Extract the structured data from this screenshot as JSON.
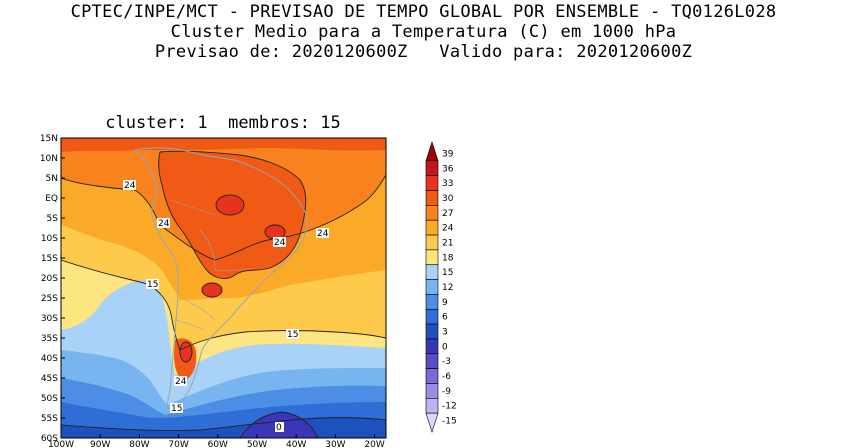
{
  "header": {
    "line1": "CPTEC/INPE/MCT - PREVISAO DE TEMPO GLOBAL POR ENSEMBLE - TQ0126L028",
    "line2": "Cluster Medio para a Temperatura (C) em 1000 hPa",
    "line3": "Previsao de: 2020120600Z   Valido para: 2020120600Z"
  },
  "subtitle": "cluster: 1  membros: 15",
  "lat_ticks": [
    "15N",
    "10N",
    "5N",
    "EQ",
    "5S",
    "10S",
    "15S",
    "20S",
    "25S",
    "30S",
    "35S",
    "40S",
    "45S",
    "50S",
    "55S",
    "60S"
  ],
  "lon_ticks": [
    "100W",
    "90W",
    "80W",
    "70W",
    "60W",
    "50W",
    "40W",
    "30W",
    "20W"
  ],
  "contour_labels": {
    "c24_a": "24",
    "c24_b": "24",
    "c24_c": "24",
    "c24_d": "24",
    "c24_e": "24",
    "c15_a": "15",
    "c15_b": "15",
    "c15_c": "15",
    "c0": "0"
  },
  "colorbar": {
    "levels": [
      "39",
      "36",
      "33",
      "30",
      "27",
      "24",
      "21",
      "18",
      "15",
      "12",
      "9",
      "6",
      "3",
      "0",
      "-3",
      "-6",
      "-9",
      "-12",
      "-15"
    ],
    "colors": [
      "#a0000a",
      "#c8141e",
      "#e6321e",
      "#f05a14",
      "#f7821e",
      "#fbaa28",
      "#fdca4c",
      "#fde682",
      "#a8d2f8",
      "#78b4f0",
      "#4c8ee6",
      "#2e6ed6",
      "#1e50c0",
      "#3a36b8",
      "#5a4cc8",
      "#7c6ad6",
      "#9e8ce2",
      "#c2b2ee",
      "#e0d6f7"
    ]
  }
}
